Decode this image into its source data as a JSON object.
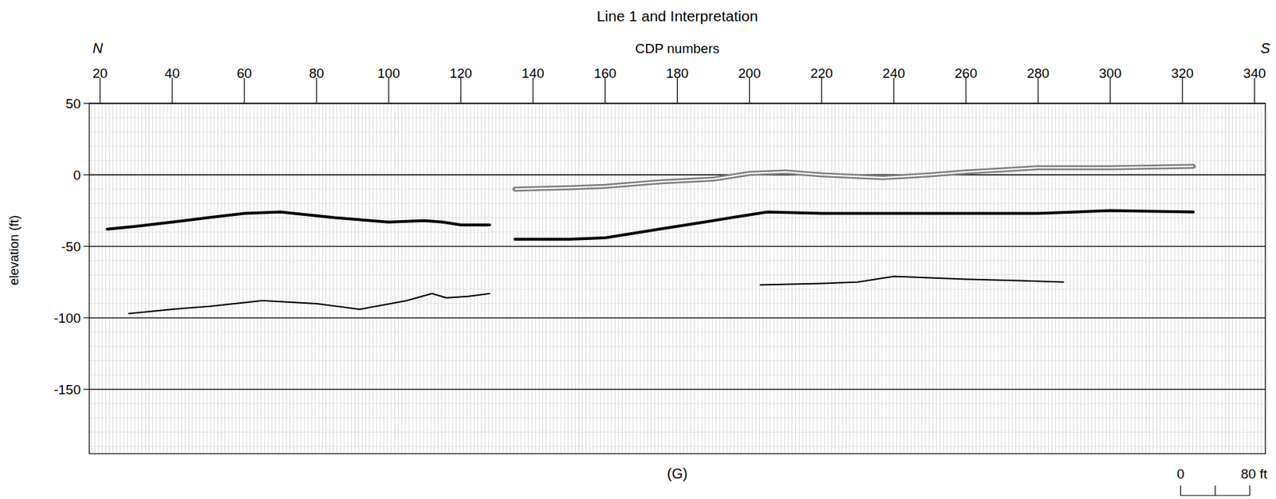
{
  "chart_data": {
    "type": "line",
    "title": "Line 1 and Interpretation",
    "x_label": "CDP numbers",
    "y_label": "elevation (ft)",
    "left_label": "N",
    "right_label": "S",
    "panel_label": "(G)",
    "xlim": [
      17,
      343
    ],
    "ylim": [
      -195,
      50
    ],
    "xticks": [
      20,
      40,
      60,
      80,
      100,
      120,
      140,
      160,
      180,
      200,
      220,
      240,
      260,
      280,
      300,
      320,
      340
    ],
    "yticks": [
      50,
      0,
      -50,
      -100,
      -150
    ],
    "grid": true,
    "series": [
      {
        "color": "#808080",
        "line_style": "double",
        "x": [
          135,
          150,
          160,
          175,
          190,
          200,
          210,
          220,
          237,
          250,
          260,
          280,
          300,
          323
        ],
        "values": [
          -10,
          -9,
          -8,
          -5,
          -3,
          1,
          2,
          0,
          -2,
          0,
          2,
          5,
          5,
          6
        ]
      },
      {
        "color": "#000000",
        "line_style": "thick",
        "x": [
          22,
          30,
          40,
          50,
          60,
          70,
          85,
          100,
          110,
          115,
          120,
          128
        ],
        "values": [
          -38,
          -36,
          -33,
          -30,
          -27,
          -26,
          -30,
          -33,
          -32,
          -33,
          -35,
          -35
        ]
      },
      {
        "color": "#000000",
        "line_style": "thick",
        "x": [
          135,
          150,
          160,
          175,
          185,
          195,
          205,
          220,
          240,
          260,
          280,
          300,
          323
        ],
        "values": [
          -45,
          -45,
          -44,
          -38,
          -34,
          -30,
          -26,
          -27,
          -27,
          -27,
          -27,
          -25,
          -26
        ]
      },
      {
        "color": "#000000",
        "line_style": "thin",
        "x": [
          28,
          40,
          50,
          65,
          80,
          92,
          105,
          112,
          116,
          122,
          128
        ],
        "values": [
          -97,
          -94,
          -92,
          -88,
          -90,
          -94,
          -88,
          -83,
          -86,
          -85,
          -83
        ]
      },
      {
        "color": "#000000",
        "line_style": "thin",
        "x": [
          203,
          220,
          230,
          240,
          250,
          260,
          275,
          287
        ],
        "values": [
          -77,
          -76,
          -75,
          -71,
          -72,
          -73,
          -74,
          -75
        ]
      }
    ],
    "scale_bar": {
      "ticks": [
        {
          "value": 0,
          "label": "0"
        },
        40,
        {
          "value": 80,
          "label": "80 ft"
        }
      ],
      "ft_per_cdp": 4.17
    }
  }
}
